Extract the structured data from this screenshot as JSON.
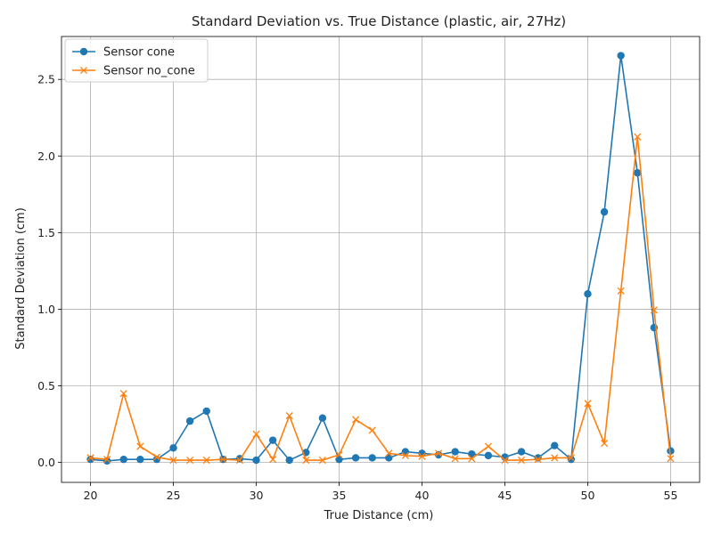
{
  "chart_data": {
    "type": "line",
    "title": "Standard Deviation vs. True Distance (plastic, air, 27Hz)",
    "xlabel": "True Distance (cm)",
    "ylabel": "Standard Deviation (cm)",
    "xlim": [
      18.25,
      56.75
    ],
    "ylim": [
      -0.13,
      2.78
    ],
    "xticks": [
      20,
      25,
      30,
      35,
      40,
      45,
      50,
      55
    ],
    "yticks": [
      0.0,
      0.5,
      1.0,
      1.5,
      2.0,
      2.5
    ],
    "ytick_labels": [
      "0.0",
      "0.5",
      "1.0",
      "1.5",
      "2.0",
      "2.5"
    ],
    "grid": true,
    "legend_position": "upper-left",
    "x": [
      20,
      21,
      22,
      23,
      24,
      25,
      26,
      27,
      28,
      29,
      30,
      31,
      32,
      33,
      34,
      35,
      36,
      37,
      38,
      39,
      40,
      41,
      42,
      43,
      44,
      45,
      46,
      47,
      48,
      49,
      50,
      51,
      52,
      53,
      54,
      55
    ],
    "series": [
      {
        "name": "Sensor cone",
        "color": "#1f77b4",
        "marker": "circle",
        "values": [
          0.02,
          0.01,
          0.02,
          0.02,
          0.02,
          0.095,
          0.27,
          0.335,
          0.02,
          0.025,
          0.015,
          0.145,
          0.015,
          0.065,
          0.29,
          0.02,
          0.03,
          0.03,
          0.03,
          0.07,
          0.06,
          0.05,
          0.07,
          0.055,
          0.045,
          0.035,
          0.07,
          0.03,
          0.11,
          0.02,
          1.1,
          1.635,
          2.655,
          1.89,
          0.88,
          0.075
        ]
      },
      {
        "name": "Sensor no_cone",
        "color": "#ff7f0e",
        "marker": "x",
        "values": [
          0.03,
          0.02,
          0.45,
          0.105,
          0.035,
          0.015,
          0.015,
          0.015,
          0.02,
          0.015,
          0.185,
          0.02,
          0.305,
          0.015,
          0.015,
          0.05,
          0.28,
          0.21,
          0.06,
          0.045,
          0.04,
          0.06,
          0.025,
          0.025,
          0.105,
          0.015,
          0.015,
          0.02,
          0.03,
          0.03,
          0.385,
          0.125,
          1.12,
          2.125,
          0.995,
          0.025
        ]
      }
    ]
  }
}
